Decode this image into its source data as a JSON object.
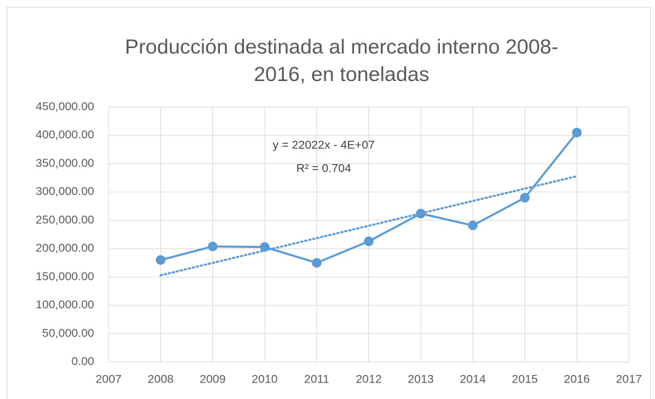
{
  "chart_data": {
    "type": "line",
    "title": [
      "Producción destinada al mercado interno  2008-",
      "2016, en toneladas"
    ],
    "annotations": [
      "y = 22022x - 4E+07",
      "R² = 0.704"
    ],
    "x": [
      2008,
      2009,
      2010,
      2011,
      2012,
      2013,
      2014,
      2015,
      2016
    ],
    "series": [
      {
        "color": "#5b9bd5",
        "values": [
          180000,
          204000,
          203000,
          175000,
          213000,
          262000,
          241000,
          290000,
          405000
        ]
      }
    ],
    "trendline": {
      "color": "#5b9bd5",
      "x": [
        2008,
        2016
      ],
      "values": [
        153000,
        328000
      ]
    },
    "xlim": [
      2007,
      2017
    ],
    "xticks": [
      2007,
      2008,
      2009,
      2010,
      2011,
      2012,
      2013,
      2014,
      2015,
      2016,
      2017
    ],
    "ylim": [
      0,
      450000
    ],
    "yticks": [
      {
        "value": 0,
        "label": "0.00"
      },
      {
        "value": 50000,
        "label": "50,000.00"
      },
      {
        "value": 100000,
        "label": "100,000.00"
      },
      {
        "value": 150000,
        "label": "150,000.00"
      },
      {
        "value": 200000,
        "label": "200,000.00"
      },
      {
        "value": 250000,
        "label": "250,000.00"
      },
      {
        "value": 300000,
        "label": "300,000.00"
      },
      {
        "value": 350000,
        "label": "350,000.00"
      },
      {
        "value": 400000,
        "label": "400,000.00"
      },
      {
        "value": 450000,
        "label": "450,000.00"
      }
    ],
    "grid": true
  }
}
